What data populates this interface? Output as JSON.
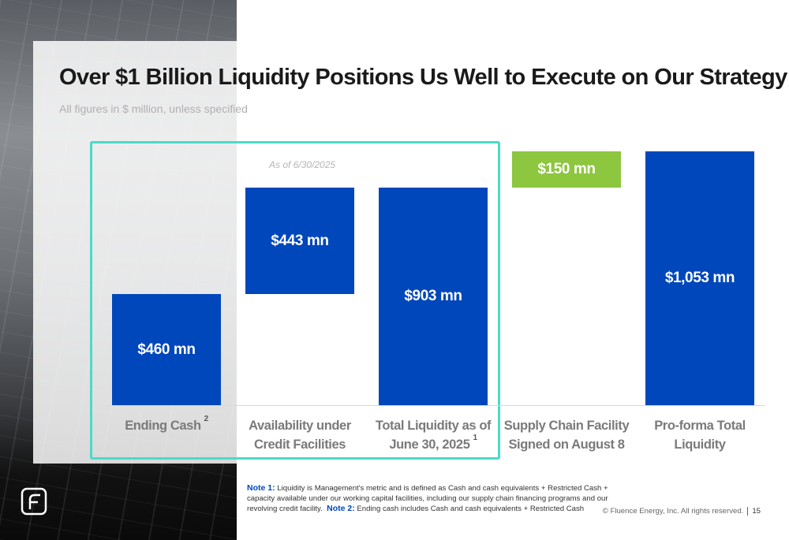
{
  "title": "Over $1 Billion Liquidity Positions Us Well to Execute on Our Strategy",
  "subtitle": "All figures in $ million, unless specified",
  "chart_data": {
    "type": "waterfall",
    "annotation": "As of 6/30/2025",
    "categories": [
      "Ending Cash",
      "Availability under Credit Facilities",
      "Total Liquidity as of June 30, 2025",
      "Supply Chain Facility Signed on August 8",
      "Pro-forma Total Liquidity"
    ],
    "category_notes": [
      "2",
      null,
      "1",
      null,
      null
    ],
    "values": [
      460,
      443,
      903,
      150,
      1053
    ],
    "value_labels": [
      "$460 mn",
      "$443 mn",
      "$903 mn",
      "$150 mn",
      "$1,053 mn"
    ],
    "totals": [
      false,
      false,
      true,
      false,
      true
    ],
    "colors": [
      "#0047bb",
      "#0047bb",
      "#0047bb",
      "#8dc63f",
      "#0047bb"
    ]
  },
  "notes": [
    {
      "label": "Note 1:",
      "text": "Liquidity is Management's metric and is defined as Cash and cash equivalents + Restricted Cash + capacity available under our working capital facilities, including our supply chain financing programs and our revolving credit facility."
    },
    {
      "label": "Note 2:",
      "text": "Ending cash includes Cash and cash equivalents + Restricted Cash"
    }
  ],
  "footer": {
    "copyright": "© Fluence Energy, Inc. All rights reserved.",
    "page": "15"
  }
}
